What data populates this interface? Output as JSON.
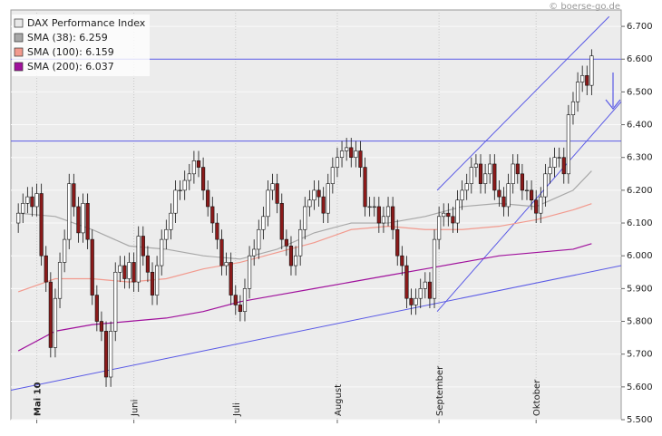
{
  "chart_data": {
    "type": "candlestick",
    "source": "© boerse-go.de",
    "categories": [
      null,
      null,
      null,
      null,
      "Mai 10",
      null,
      null,
      null,
      null,
      null,
      null,
      null,
      null,
      null,
      null,
      null,
      null,
      null,
      null,
      null,
      null,
      null,
      null,
      null,
      null,
      "Juni",
      null,
      null,
      null,
      null,
      null,
      null,
      null,
      null,
      null,
      null,
      null,
      null,
      null,
      null,
      null,
      null,
      null,
      null,
      null,
      null,
      null,
      "Juli",
      null,
      null,
      null,
      null,
      null,
      null,
      null,
      null,
      null,
      null,
      null,
      null,
      null,
      null,
      null,
      null,
      null,
      null,
      null,
      null,
      null,
      "August",
      null,
      null,
      null,
      null,
      null,
      null,
      null,
      null,
      null,
      null,
      null,
      null,
      null,
      null,
      null,
      null,
      null,
      null,
      null,
      null,
      null,
      "September",
      null,
      null,
      null,
      null,
      null,
      null,
      null,
      null,
      null,
      null,
      null,
      null,
      null,
      null,
      null,
      null,
      null,
      null,
      null,
      null,
      "Oktober",
      null,
      null,
      null,
      null,
      null,
      null,
      null,
      null,
      null,
      null,
      null,
      null
    ],
    "xlim": [
      -1.6,
      130.4
    ],
    "ylim": [
      5.5,
      6.75
    ],
    "yticks": [
      {
        "value": 5.5,
        "label": "5.500"
      },
      {
        "value": 5.6,
        "label": "5.600"
      },
      {
        "value": 5.7,
        "label": "5.700"
      },
      {
        "value": 5.8,
        "label": "5.800"
      },
      {
        "value": 5.9,
        "label": "5.900"
      },
      {
        "value": 6.0,
        "label": "6.000"
      },
      {
        "value": 6.1,
        "label": "6.100"
      },
      {
        "value": 6.2,
        "label": "6.200"
      },
      {
        "value": 6.3,
        "label": "6.300"
      },
      {
        "value": 6.4,
        "label": "6.400"
      },
      {
        "value": 6.5,
        "label": "6.500"
      },
      {
        "value": 6.6,
        "label": "6.600"
      },
      {
        "value": 6.7,
        "label": "6.700"
      }
    ],
    "grid": true,
    "series": [
      {
        "name": "DAX Performance Index",
        "color": "#e8e8e8",
        "up_color": "#ffffff",
        "down_color": "#8b1a1a",
        "open": [
          6.1,
          6.13,
          6.16,
          6.18,
          6.15,
          6.19,
          6.0,
          5.92,
          5.72,
          5.87,
          5.98,
          6.05,
          6.22,
          6.15,
          6.07,
          6.16,
          6.05,
          5.88,
          5.8,
          5.77,
          5.63,
          5.77,
          5.95,
          5.97,
          5.93,
          5.98,
          5.92,
          6.06,
          6.0,
          5.95,
          5.88,
          5.97,
          6.05,
          6.08,
          6.13,
          6.2,
          6.2,
          6.23,
          6.25,
          6.29,
          6.27,
          6.2,
          6.15,
          6.1,
          6.05,
          5.97,
          5.98,
          5.88,
          5.85,
          5.83,
          5.9,
          6.0,
          6.02,
          6.08,
          6.12,
          6.2,
          6.22,
          6.16,
          6.05,
          6.03,
          5.97,
          6.0,
          6.08,
          6.15,
          6.17,
          6.2,
          6.18,
          6.13,
          6.22,
          6.27,
          6.3,
          6.32,
          6.33,
          6.3,
          6.32,
          6.27,
          6.15,
          6.15,
          6.15,
          6.1,
          6.12,
          6.15,
          6.08,
          6.0,
          5.97,
          5.87,
          5.85,
          5.87,
          5.9,
          5.92,
          5.87,
          6.05,
          6.12,
          6.13,
          6.12,
          6.1,
          6.17,
          6.2,
          6.22,
          6.27,
          6.28,
          6.22,
          6.25,
          6.28,
          6.2,
          6.18,
          6.15,
          6.22,
          6.28,
          6.25,
          6.2,
          6.2,
          6.17,
          6.13,
          6.18,
          6.25,
          6.27,
          6.3,
          6.3,
          6.25,
          6.43,
          6.47,
          6.53,
          6.55,
          6.52
        ],
        "high": [
          6.16,
          6.19,
          6.21,
          6.21,
          6.22,
          6.22,
          6.03,
          5.95,
          5.9,
          6.01,
          6.08,
          6.25,
          6.25,
          6.18,
          6.19,
          6.19,
          6.08,
          5.91,
          5.83,
          5.8,
          5.8,
          5.98,
          6.0,
          6.0,
          6.01,
          6.01,
          6.09,
          6.09,
          6.03,
          5.98,
          6.0,
          6.08,
          6.11,
          6.16,
          6.23,
          6.23,
          6.26,
          6.28,
          6.32,
          6.32,
          6.3,
          6.23,
          6.18,
          6.13,
          6.08,
          6.01,
          6.01,
          5.91,
          5.88,
          5.93,
          6.03,
          6.05,
          6.11,
          6.15,
          6.23,
          6.25,
          6.25,
          6.19,
          6.08,
          6.06,
          6.03,
          6.11,
          6.18,
          6.2,
          6.23,
          6.23,
          6.21,
          6.25,
          6.3,
          6.33,
          6.35,
          6.36,
          6.36,
          6.35,
          6.35,
          6.3,
          6.18,
          6.18,
          6.18,
          6.15,
          6.18,
          6.18,
          6.11,
          6.03,
          6.0,
          5.9,
          5.9,
          5.93,
          5.95,
          5.95,
          6.08,
          6.15,
          6.16,
          6.16,
          6.15,
          6.2,
          6.23,
          6.25,
          6.3,
          6.31,
          6.31,
          6.28,
          6.31,
          6.31,
          6.23,
          6.21,
          6.25,
          6.31,
          6.31,
          6.28,
          6.23,
          6.23,
          6.2,
          6.21,
          6.28,
          6.3,
          6.33,
          6.33,
          6.33,
          6.46,
          6.5,
          6.56,
          6.58,
          6.58,
          6.63
        ],
        "low": [
          6.07,
          6.1,
          6.13,
          6.12,
          6.12,
          5.97,
          5.89,
          5.69,
          5.69,
          5.84,
          5.95,
          6.02,
          6.12,
          6.04,
          6.04,
          6.02,
          5.85,
          5.77,
          5.74,
          5.6,
          5.6,
          5.74,
          5.92,
          5.9,
          5.9,
          5.89,
          5.89,
          5.97,
          5.92,
          5.85,
          5.85,
          5.94,
          6.02,
          6.05,
          6.1,
          6.17,
          6.17,
          6.2,
          6.22,
          6.24,
          6.17,
          6.12,
          6.07,
          6.02,
          5.94,
          5.94,
          5.85,
          5.82,
          5.8,
          5.8,
          5.87,
          5.97,
          5.99,
          6.05,
          6.09,
          6.17,
          6.13,
          6.02,
          6.0,
          5.94,
          5.94,
          5.97,
          6.05,
          6.12,
          6.14,
          6.15,
          6.1,
          6.1,
          6.19,
          6.24,
          6.27,
          6.29,
          6.27,
          6.27,
          6.24,
          6.12,
          6.12,
          6.12,
          6.07,
          6.07,
          6.09,
          6.05,
          5.97,
          5.94,
          5.84,
          5.82,
          5.82,
          5.84,
          5.87,
          5.84,
          5.84,
          6.02,
          6.09,
          6.09,
          6.07,
          6.07,
          6.14,
          6.17,
          6.19,
          6.24,
          6.19,
          6.19,
          6.22,
          6.17,
          6.15,
          6.12,
          6.12,
          6.19,
          6.22,
          6.17,
          6.17,
          6.14,
          6.1,
          6.1,
          6.15,
          6.22,
          6.24,
          6.27,
          6.22,
          6.22,
          6.4,
          6.44,
          6.5,
          6.49,
          6.49
        ],
        "close": [
          6.13,
          6.16,
          6.18,
          6.15,
          6.19,
          6.0,
          5.92,
          5.72,
          5.87,
          5.98,
          6.05,
          6.22,
          6.15,
          6.07,
          6.16,
          6.05,
          5.88,
          5.8,
          5.77,
          5.63,
          5.77,
          5.95,
          5.97,
          5.93,
          5.98,
          5.92,
          6.06,
          6.0,
          5.95,
          5.88,
          5.97,
          6.05,
          6.08,
          6.13,
          6.2,
          6.2,
          6.23,
          6.25,
          6.29,
          6.27,
          6.2,
          6.15,
          6.1,
          6.05,
          5.97,
          5.98,
          5.88,
          5.85,
          5.83,
          5.9,
          6.0,
          6.02,
          6.08,
          6.12,
          6.2,
          6.22,
          6.16,
          6.05,
          6.03,
          5.97,
          6.0,
          6.08,
          6.15,
          6.17,
          6.2,
          6.18,
          6.13,
          6.22,
          6.27,
          6.3,
          6.32,
          6.33,
          6.3,
          6.32,
          6.27,
          6.15,
          6.15,
          6.15,
          6.1,
          6.12,
          6.15,
          6.08,
          6.0,
          5.97,
          5.87,
          5.85,
          5.87,
          5.9,
          5.92,
          5.87,
          6.05,
          6.12,
          6.13,
          6.12,
          6.1,
          6.17,
          6.2,
          6.22,
          6.27,
          6.28,
          6.22,
          6.25,
          6.28,
          6.2,
          6.18,
          6.15,
          6.22,
          6.28,
          6.25,
          6.2,
          6.2,
          6.17,
          6.13,
          6.18,
          6.25,
          6.27,
          6.3,
          6.3,
          6.25,
          6.43,
          6.47,
          6.53,
          6.55,
          6.52,
          6.61
        ]
      },
      {
        "name": "SMA (38): 6.259",
        "color": "#a8a8a8",
        "x": [
          0,
          8,
          16,
          24,
          32,
          40,
          48,
          56,
          64,
          72,
          80,
          88,
          96,
          104,
          112,
          120,
          124
        ],
        "values": [
          6.13,
          6.12,
          6.08,
          6.03,
          6.02,
          6.0,
          5.99,
          6.02,
          6.07,
          6.1,
          6.1,
          6.12,
          6.15,
          6.16,
          6.15,
          6.2,
          6.259
        ]
      },
      {
        "name": "SMA (100): 6.159",
        "color": "#f29a8e",
        "x": [
          0,
          8,
          16,
          24,
          32,
          40,
          48,
          56,
          64,
          72,
          80,
          88,
          96,
          104,
          112,
          120,
          124
        ],
        "values": [
          5.89,
          5.93,
          5.93,
          5.92,
          5.93,
          5.96,
          5.98,
          6.01,
          6.04,
          6.08,
          6.09,
          6.08,
          6.08,
          6.09,
          6.11,
          6.14,
          6.159
        ]
      },
      {
        "name": "SMA (200): 6.037",
        "color": "#a0119c",
        "x": [
          0,
          8,
          16,
          24,
          32,
          40,
          48,
          56,
          64,
          72,
          80,
          88,
          96,
          104,
          112,
          120,
          124
        ],
        "values": [
          5.71,
          5.77,
          5.79,
          5.8,
          5.81,
          5.83,
          5.86,
          5.88,
          5.9,
          5.92,
          5.94,
          5.96,
          5.98,
          6.0,
          6.01,
          6.02,
          6.037
        ]
      }
    ],
    "hlines": {
      "color": "#5a5ae6",
      "values": [
        6.6,
        6.35
      ]
    },
    "trendlines": {
      "color": "#5a5ae6",
      "lines": [
        {
          "x": [
            -1.6,
            130.4
          ],
          "values": [
            5.59,
            5.97
          ]
        },
        {
          "x": [
            90.6,
            127.8
          ],
          "values": [
            6.2,
            6.73
          ]
        },
        {
          "x": [
            90.6,
            130.4
          ],
          "values": [
            5.83,
            6.47
          ]
        }
      ]
    }
  }
}
